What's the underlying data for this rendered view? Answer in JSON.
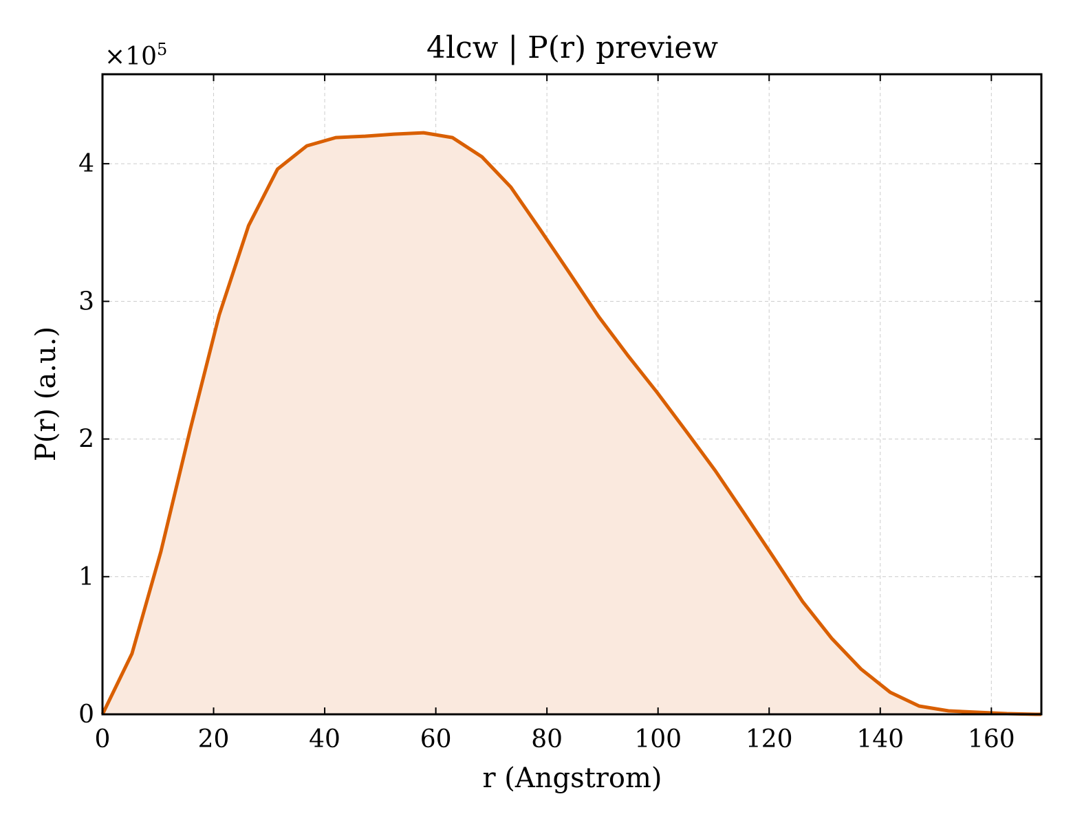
{
  "chart_data": {
    "type": "area",
    "title": "4lcw | P(r) preview",
    "xlabel": "r (Angstrom)",
    "ylabel": "P(r) (a.u.)",
    "y_offset_label": "×10",
    "y_offset_exponent": "5",
    "y_scale": 100000,
    "xlim": [
      0,
      169
    ],
    "ylim": [
      0,
      465000
    ],
    "x_ticks": [
      0,
      20,
      40,
      60,
      80,
      100,
      120,
      140,
      160
    ],
    "x_tick_labels": [
      "0",
      "20",
      "40",
      "60",
      "80",
      "100",
      "120",
      "140",
      "160"
    ],
    "y_ticks": [
      0,
      100000,
      200000,
      300000,
      400000
    ],
    "y_tick_labels": [
      "0",
      "1",
      "2",
      "3",
      "4"
    ],
    "grid": true,
    "line_color": "#d95f02",
    "fill_color": "#fae9de",
    "series": [
      {
        "x": [
          0,
          5.3,
          10.5,
          15.8,
          21.0,
          26.3,
          31.5,
          36.8,
          42.0,
          47.3,
          52.5,
          57.8,
          63.0,
          68.3,
          73.5,
          78.8,
          84.0,
          89.3,
          94.5,
          99.8,
          105.0,
          110.3,
          115.5,
          120.8,
          126.0,
          131.3,
          136.5,
          141.8,
          147.0,
          152.3,
          157.5,
          162.8,
          168.0,
          169.0
        ],
        "y": [
          0,
          44000,
          118000,
          207000,
          290000,
          355000,
          396000,
          413000,
          419000,
          420000,
          421500,
          422500,
          419000,
          405000,
          383000,
          352000,
          321000,
          289000,
          261000,
          234000,
          206000,
          177000,
          146000,
          114000,
          82000,
          55000,
          33000,
          16000,
          6000,
          2500,
          1500,
          500,
          0,
          0
        ]
      }
    ]
  }
}
